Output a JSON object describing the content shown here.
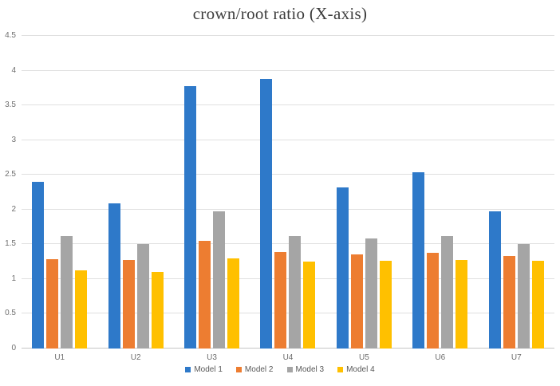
{
  "chart_data": {
    "type": "bar",
    "title": "crown/root ratio (X-axis)",
    "categories": [
      "U1",
      "U2",
      "U3",
      "U4",
      "U5",
      "U6",
      "U7"
    ],
    "series": [
      {
        "name": "Model 1",
        "color": "#2e79c9",
        "values": [
          2.4,
          2.09,
          3.78,
          3.88,
          2.32,
          2.54,
          1.97
        ]
      },
      {
        "name": "Model 2",
        "color": "#ed7d31",
        "values": [
          1.29,
          1.27,
          1.55,
          1.39,
          1.36,
          1.38,
          1.33
        ]
      },
      {
        "name": "Model 3",
        "color": "#a5a5a5",
        "values": [
          1.62,
          1.5,
          1.98,
          1.62,
          1.59,
          1.62,
          1.5
        ]
      },
      {
        "name": "Model 4",
        "color": "#ffc000",
        "values": [
          1.12,
          1.1,
          1.3,
          1.25,
          1.26,
          1.27,
          1.26
        ]
      }
    ],
    "xlabel": "",
    "ylabel": "",
    "ylim": [
      0,
      4.5
    ],
    "ytick_step": 0.5,
    "ytick_labels": [
      "0",
      "0.5",
      "1",
      "1.5",
      "2",
      "2.5",
      "3",
      "3.5",
      "4",
      "4.5"
    ],
    "grid": "horizontal",
    "legend_position": "bottom"
  },
  "styles": {
    "gridline_color": "#e0e0e0",
    "baseline_color": "#c6c6c6",
    "tick_label_color": "#6e6e6e",
    "legend_text_color": "#595959",
    "title_color": "#3d3d3d",
    "background": "#ffffff"
  }
}
